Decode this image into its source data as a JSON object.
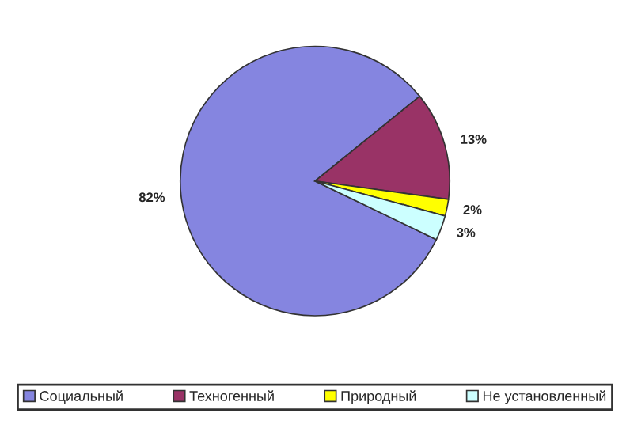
{
  "chart_data": {
    "type": "pie",
    "categories": [
      "Социальный",
      "Техногенный",
      "Природный",
      "Не установленный"
    ],
    "values": [
      82,
      13,
      2,
      3
    ],
    "colors": [
      "#8585e0",
      "#993366",
      "#ffff00",
      "#ccffff"
    ],
    "value_labels": [
      "82%",
      "13%",
      "2%",
      "3%"
    ],
    "legend": "bottom"
  }
}
